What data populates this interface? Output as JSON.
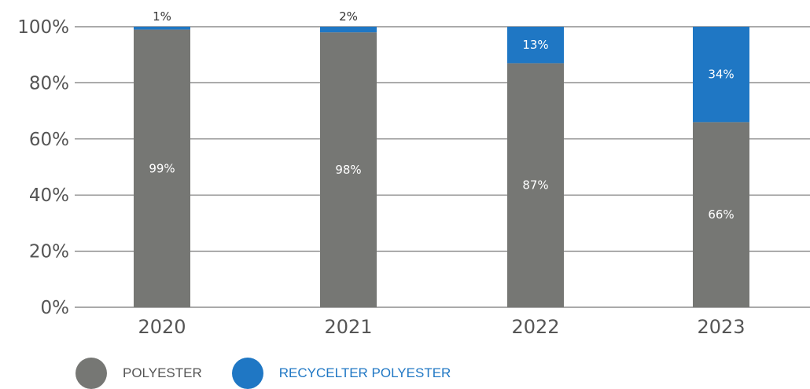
{
  "chart_data": {
    "type": "bar",
    "stacked": true,
    "categories": [
      "2020",
      "2021",
      "2022",
      "2023"
    ],
    "series": [
      {
        "name": "POLYESTER",
        "values": [
          99,
          98,
          87,
          66
        ],
        "labels": [
          "99%",
          "98%",
          "87%",
          "66%"
        ],
        "color": "#767774",
        "label_color": "#ffffff"
      },
      {
        "name": "RECYCELTER POLYESTER",
        "values": [
          1,
          2,
          13,
          34
        ],
        "labels": [
          "1%",
          "2%",
          "13%",
          "34%"
        ],
        "color": "#1f77c4",
        "label_color": "#ffffff"
      }
    ],
    "yticks": [
      "0%",
      "20%",
      "40%",
      "60%",
      "80%",
      "100%"
    ],
    "ylim": [
      0,
      100
    ],
    "grid": true,
    "legend_position": "bottom-left"
  }
}
